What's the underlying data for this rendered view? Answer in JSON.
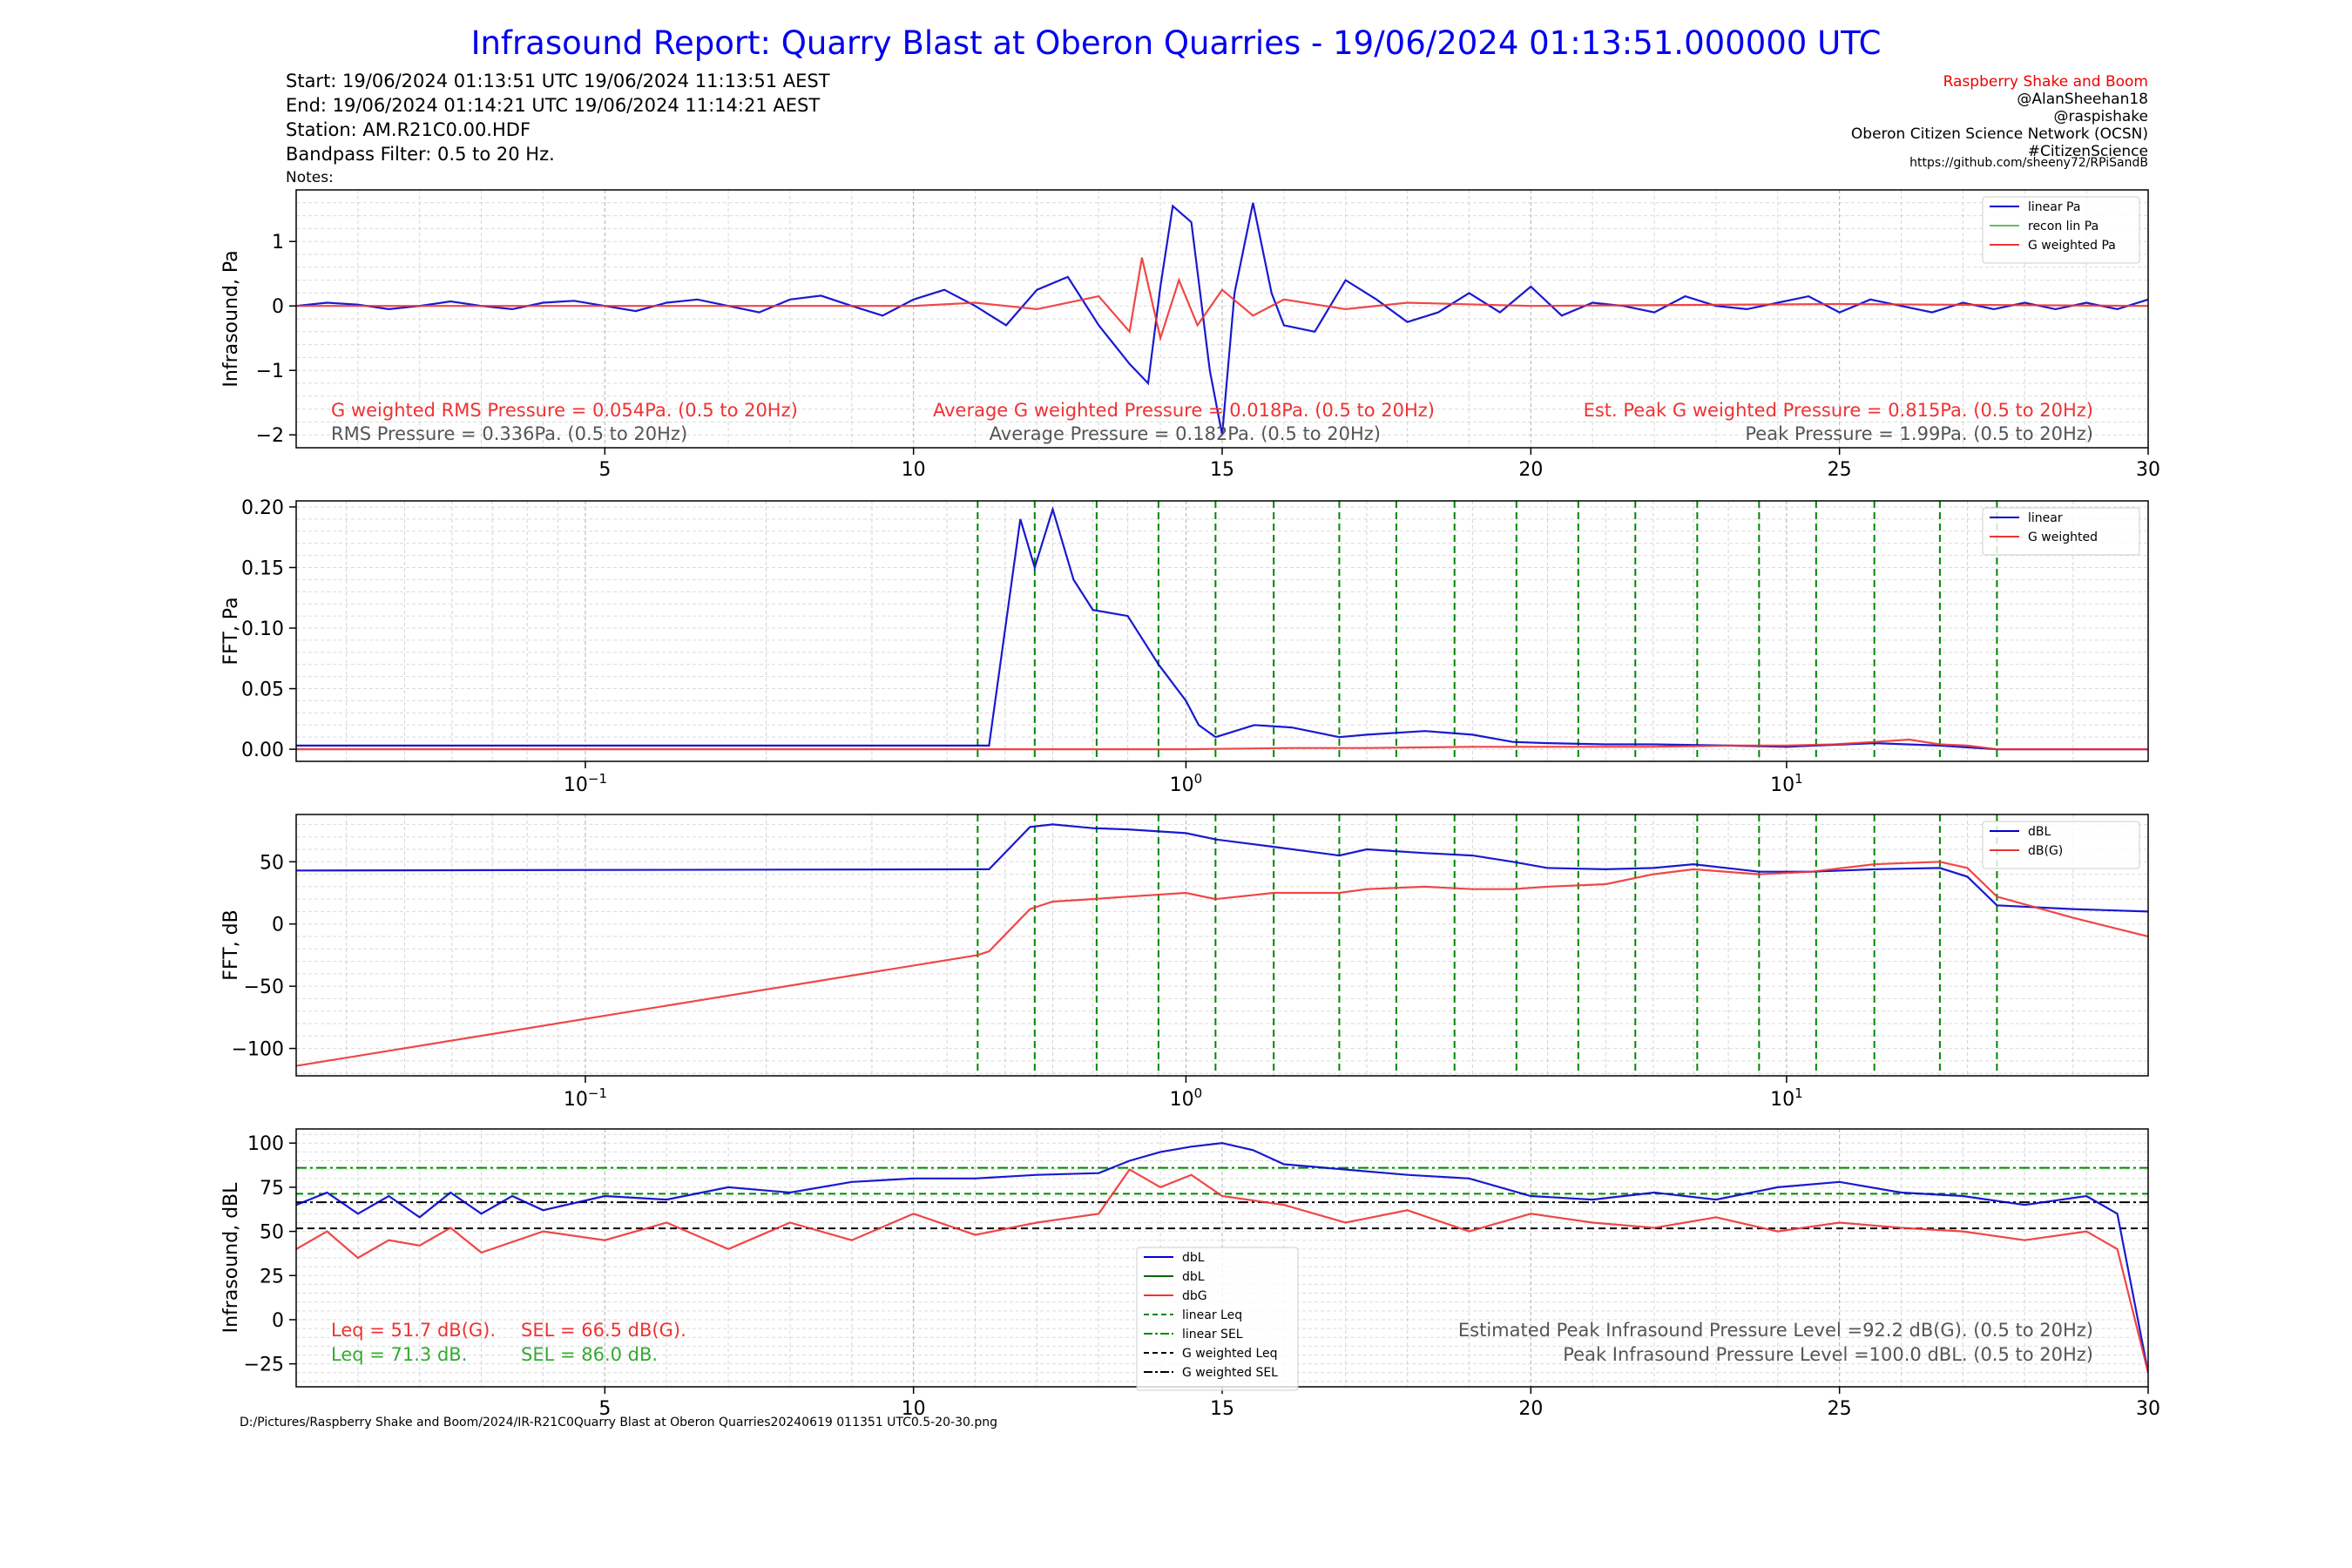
{
  "title": "Infrasound Report: Quarry Blast at Oberon Quarries - 19/06/2024 01:13:51.000000 UTC",
  "header_left": [
    "Start: 19/06/2024 01:13:51 UTC   19/06/2024 11:13:51 AEST",
    "End: 19/06/2024 01:14:21 UTC   19/06/2024 11:14:21 AEST",
    "Station: AM.R21C0.00.HDF",
    "Bandpass Filter: 0.5 to 20 Hz.",
    "Notes:"
  ],
  "header_right": {
    "brand": "Raspberry Shake and Boom",
    "lines": [
      "@AlanSheehan18",
      "@raspishake",
      "Oberon Citizen Science Network (OCSN)",
      "#CitizenScience",
      "https://github.com/sheeny72/RPiSandB"
    ]
  },
  "footer_path": "D:/Pictures/Raspberry Shake and Boom/2024/IR-R21C0Quarry Blast at Oberon Quarries20240619 011351 UTC0.5-20-30.png",
  "colors": {
    "title": "#0000ee",
    "linear": "#0000cc",
    "recon": "#66bb66",
    "gweighted": "#ee3333",
    "leq_green": "#33aa33",
    "dark_green": "#006600",
    "stat_grey": "#555555",
    "brand_red": "#ee0000"
  },
  "chart_data": [
    {
      "id": "waveform",
      "type": "line",
      "ylabel": "Infrasound, Pa",
      "xlim": [
        0,
        30
      ],
      "ylim": [
        -2.2,
        1.8
      ],
      "x_ticks": [
        5,
        10,
        15,
        20,
        25,
        30
      ],
      "y_ticks": [
        -2,
        -1,
        0,
        1
      ],
      "legend": {
        "position": "top-right",
        "entries": [
          "linear Pa",
          "recon lin Pa",
          "G weighted Pa"
        ]
      },
      "series": [
        {
          "name": "linear Pa",
          "x": [
            0,
            0.5,
            1,
            1.5,
            2,
            2.5,
            3,
            3.5,
            4,
            4.5,
            5,
            5.5,
            6,
            6.5,
            7,
            7.5,
            8,
            8.5,
            9,
            9.5,
            10,
            10.5,
            11,
            11.5,
            12,
            12.5,
            13,
            13.5,
            13.8,
            14,
            14.2,
            14.5,
            14.8,
            15,
            15.2,
            15.5,
            15.8,
            16,
            16.5,
            17,
            17.5,
            18,
            18.5,
            19,
            19.5,
            20,
            20.5,
            21,
            21.5,
            22,
            22.5,
            23,
            23.5,
            24,
            24.5,
            25,
            25.5,
            26,
            26.5,
            27,
            27.5,
            28,
            28.5,
            29,
            29.5,
            30
          ],
          "values": [
            0,
            0.05,
            0.02,
            -0.05,
            0,
            0.07,
            0,
            -0.05,
            0.05,
            0.08,
            0,
            -0.08,
            0.05,
            0.1,
            0,
            -0.1,
            0.1,
            0.16,
            0,
            -0.15,
            0.1,
            0.25,
            0,
            -0.3,
            0.25,
            0.45,
            -0.3,
            -0.9,
            -1.2,
            0.3,
            1.55,
            1.3,
            -1.0,
            -2.0,
            0.2,
            1.6,
            0.2,
            -0.3,
            -0.4,
            0.4,
            0.1,
            -0.25,
            -0.1,
            0.2,
            -0.1,
            0.3,
            -0.15,
            0.05,
            0,
            -0.1,
            0.15,
            0,
            -0.05,
            0.05,
            0.15,
            -0.1,
            0.1,
            0,
            -0.1,
            0.05,
            -0.05,
            0.05,
            -0.05,
            0.05,
            -0.05,
            0.1
          ]
        },
        {
          "name": "G weighted Pa",
          "x": [
            0,
            10,
            11,
            12,
            13,
            13.5,
            13.7,
            14,
            14.3,
            14.6,
            15,
            15.5,
            16,
            17,
            18,
            20,
            25,
            30
          ],
          "values": [
            0,
            0,
            0.05,
            -0.05,
            0.15,
            -0.4,
            0.75,
            -0.5,
            0.4,
            -0.3,
            0.25,
            -0.15,
            0.1,
            -0.05,
            0.05,
            0,
            0.03,
            0
          ]
        }
      ],
      "annotations": [
        {
          "text": "G weighted RMS Pressure = 0.054Pa. (0.5 to 20Hz)",
          "color": "gweighted"
        },
        {
          "text": "Average G weighted Pressure = 0.018Pa. (0.5 to 20Hz)",
          "color": "gweighted"
        },
        {
          "text": "Est. Peak G weighted Pressure = 0.815Pa. (0.5 to 20Hz)",
          "color": "gweighted"
        },
        {
          "text": "RMS Pressure = 0.336Pa. (0.5 to 20Hz)",
          "color": "stat_grey"
        },
        {
          "text": "Average Pressure = 0.182Pa. (0.5 to 20Hz)",
          "color": "stat_grey"
        },
        {
          "text": "Peak Pressure = 1.99Pa. (0.5 to 20Hz)",
          "color": "stat_grey"
        }
      ]
    },
    {
      "id": "fft_pa",
      "type": "line",
      "ylabel": "FFT, Pa",
      "xscale": "log",
      "xlim": [
        0.033,
        40
      ],
      "ylim": [
        -0.01,
        0.205
      ],
      "x_ticks": [
        {
          "value": 0.1,
          "base": "10",
          "exp": "−1"
        },
        {
          "value": 1,
          "base": "10",
          "exp": "0"
        },
        {
          "value": 10,
          "base": "10",
          "exp": "1"
        }
      ],
      "y_ticks": [
        0.0,
        0.05,
        0.1,
        0.15,
        0.2
      ],
      "y_tick_labels": [
        "0.00",
        "0.05",
        "0.10",
        "0.15",
        "0.20"
      ],
      "band_lines": [
        0.45,
        0.56,
        0.71,
        0.9,
        1.12,
        1.4,
        1.8,
        2.24,
        2.8,
        3.55,
        4.5,
        5.6,
        7.1,
        9,
        11.2,
        14,
        18,
        22.4
      ],
      "legend": {
        "position": "top-right",
        "entries": [
          "linear",
          "G weighted"
        ]
      },
      "series": [
        {
          "name": "linear",
          "x": [
            0.033,
            0.45,
            0.47,
            0.53,
            0.56,
            0.6,
            0.65,
            0.7,
            0.8,
            0.9,
            1,
            1.05,
            1.12,
            1.3,
            1.5,
            1.8,
            2,
            2.5,
            3,
            3.5,
            4,
            5,
            6,
            8,
            10,
            14,
            18,
            22.4,
            30,
            40
          ],
          "values": [
            0.003,
            0.003,
            0.003,
            0.19,
            0.15,
            0.198,
            0.14,
            0.115,
            0.11,
            0.07,
            0.04,
            0.02,
            0.01,
            0.02,
            0.018,
            0.01,
            0.012,
            0.015,
            0.012,
            0.006,
            0.005,
            0.004,
            0.004,
            0.003,
            0.002,
            0.005,
            0.003,
            0,
            0,
            0
          ]
        },
        {
          "name": "G weighted",
          "x": [
            0.033,
            0.45,
            1,
            1.5,
            2,
            3,
            4,
            6,
            8,
            10,
            12,
            14,
            16,
            18,
            20,
            22.4,
            30,
            40
          ],
          "values": [
            0,
            0,
            0,
            0.001,
            0.001,
            0.002,
            0.002,
            0.002,
            0.003,
            0.003,
            0.004,
            0.006,
            0.008,
            0.004,
            0.003,
            0,
            0,
            0
          ]
        }
      ]
    },
    {
      "id": "fft_db",
      "type": "line",
      "ylabel": "FFT, dB",
      "xscale": "log",
      "xlim": [
        0.033,
        40
      ],
      "ylim": [
        -122,
        88
      ],
      "x_ticks": [
        {
          "value": 0.1,
          "base": "10",
          "exp": "−1"
        },
        {
          "value": 1,
          "base": "10",
          "exp": "0"
        },
        {
          "value": 10,
          "base": "10",
          "exp": "1"
        }
      ],
      "y_ticks": [
        -100,
        -50,
        0,
        50
      ],
      "band_lines": [
        0.45,
        0.56,
        0.71,
        0.9,
        1.12,
        1.4,
        1.8,
        2.24,
        2.8,
        3.55,
        4.5,
        5.6,
        7.1,
        9,
        11.2,
        14,
        18,
        22.4
      ],
      "legend": {
        "position": "top-right",
        "entries": [
          "dBL",
          "dB(G)"
        ]
      },
      "series": [
        {
          "name": "dBL",
          "x": [
            0.033,
            0.45,
            0.47,
            0.55,
            0.6,
            0.7,
            0.8,
            1,
            1.12,
            1.4,
            1.8,
            2,
            2.5,
            3,
            3.5,
            4,
            5,
            6,
            7,
            9,
            11,
            14,
            18,
            20,
            22.4,
            30,
            40
          ],
          "values": [
            43,
            44,
            44,
            78,
            80,
            77,
            76,
            73,
            68,
            62,
            55,
            60,
            57,
            55,
            50,
            45,
            44,
            45,
            48,
            42,
            42,
            44,
            45,
            38,
            15,
            12,
            10
          ]
        },
        {
          "name": "dB(G)",
          "x": [
            0.033,
            0.45,
            0.47,
            0.55,
            0.6,
            0.7,
            0.8,
            1,
            1.12,
            1.4,
            1.8,
            2,
            2.5,
            3,
            3.5,
            4,
            5,
            6,
            7,
            9,
            11,
            14,
            18,
            20,
            22.4,
            30,
            40
          ],
          "values": [
            -114,
            -25,
            -22,
            12,
            18,
            20,
            22,
            25,
            20,
            25,
            25,
            28,
            30,
            28,
            28,
            30,
            32,
            40,
            44,
            40,
            42,
            48,
            50,
            45,
            22,
            5,
            -10
          ]
        }
      ]
    },
    {
      "id": "dbl_time",
      "type": "line",
      "ylabel": "Infrasound, dBL",
      "xlim": [
        0,
        30
      ],
      "ylim": [
        -38,
        108
      ],
      "x_ticks": [
        5,
        10,
        15,
        20,
        25,
        30
      ],
      "y_ticks": [
        -25,
        0,
        25,
        50,
        75,
        100
      ],
      "legend": {
        "position": "center",
        "entries": [
          "dbL",
          "dbL",
          "dbG",
          "linear Leq",
          "linear SEL",
          "G weighted Leq",
          "G weighted SEL"
        ]
      },
      "reference_lines": {
        "linear_leq": 71.3,
        "linear_sel": 86.0,
        "g_leq": 51.7,
        "g_sel": 66.5
      },
      "series": [
        {
          "name": "dbL",
          "x": [
            0,
            0.5,
            1,
            1.5,
            2,
            2.5,
            3,
            3.5,
            4,
            5,
            6,
            7,
            8,
            9,
            10,
            11,
            12,
            13,
            13.5,
            14,
            14.5,
            15,
            15.5,
            16,
            17,
            18,
            19,
            20,
            21,
            22,
            23,
            24,
            25,
            26,
            27,
            28,
            29,
            29.5,
            30
          ],
          "values": [
            65,
            72,
            60,
            70,
            58,
            72,
            60,
            70,
            62,
            70,
            68,
            75,
            72,
            78,
            80,
            80,
            82,
            83,
            90,
            95,
            98,
            100,
            96,
            88,
            85,
            82,
            80,
            70,
            68,
            72,
            68,
            75,
            78,
            72,
            70,
            65,
            70,
            60,
            -30
          ]
        },
        {
          "name": "dbG",
          "x": [
            0,
            0.5,
            1,
            1.5,
            2,
            2.5,
            3,
            4,
            5,
            6,
            7,
            8,
            9,
            10,
            11,
            12,
            13,
            13.5,
            14,
            14.5,
            15,
            16,
            17,
            18,
            19,
            20,
            21,
            22,
            23,
            24,
            25,
            26,
            27,
            28,
            29,
            29.5,
            30
          ],
          "values": [
            40,
            50,
            35,
            45,
            42,
            52,
            38,
            50,
            45,
            55,
            40,
            55,
            45,
            60,
            48,
            55,
            60,
            85,
            75,
            82,
            70,
            65,
            55,
            62,
            50,
            60,
            55,
            52,
            58,
            50,
            55,
            52,
            50,
            45,
            50,
            40,
            -30
          ]
        }
      ],
      "annotations": [
        {
          "text": "Leq = 51.7 dB(G).",
          "color": "gweighted"
        },
        {
          "text": "SEL = 66.5 dB(G).",
          "color": "gweighted"
        },
        {
          "text": "Leq = 71.3 dB.",
          "color": "leq_green"
        },
        {
          "text": "SEL = 86.0 dB.",
          "color": "leq_green"
        },
        {
          "text": "Estimated Peak Infrasound Pressure Level =92.2 dB(G). (0.5 to 20Hz)",
          "color": "stat_grey"
        },
        {
          "text": "Peak Infrasound Pressure Level =100.0 dBL. (0.5 to 20Hz)",
          "color": "stat_grey"
        }
      ]
    }
  ]
}
